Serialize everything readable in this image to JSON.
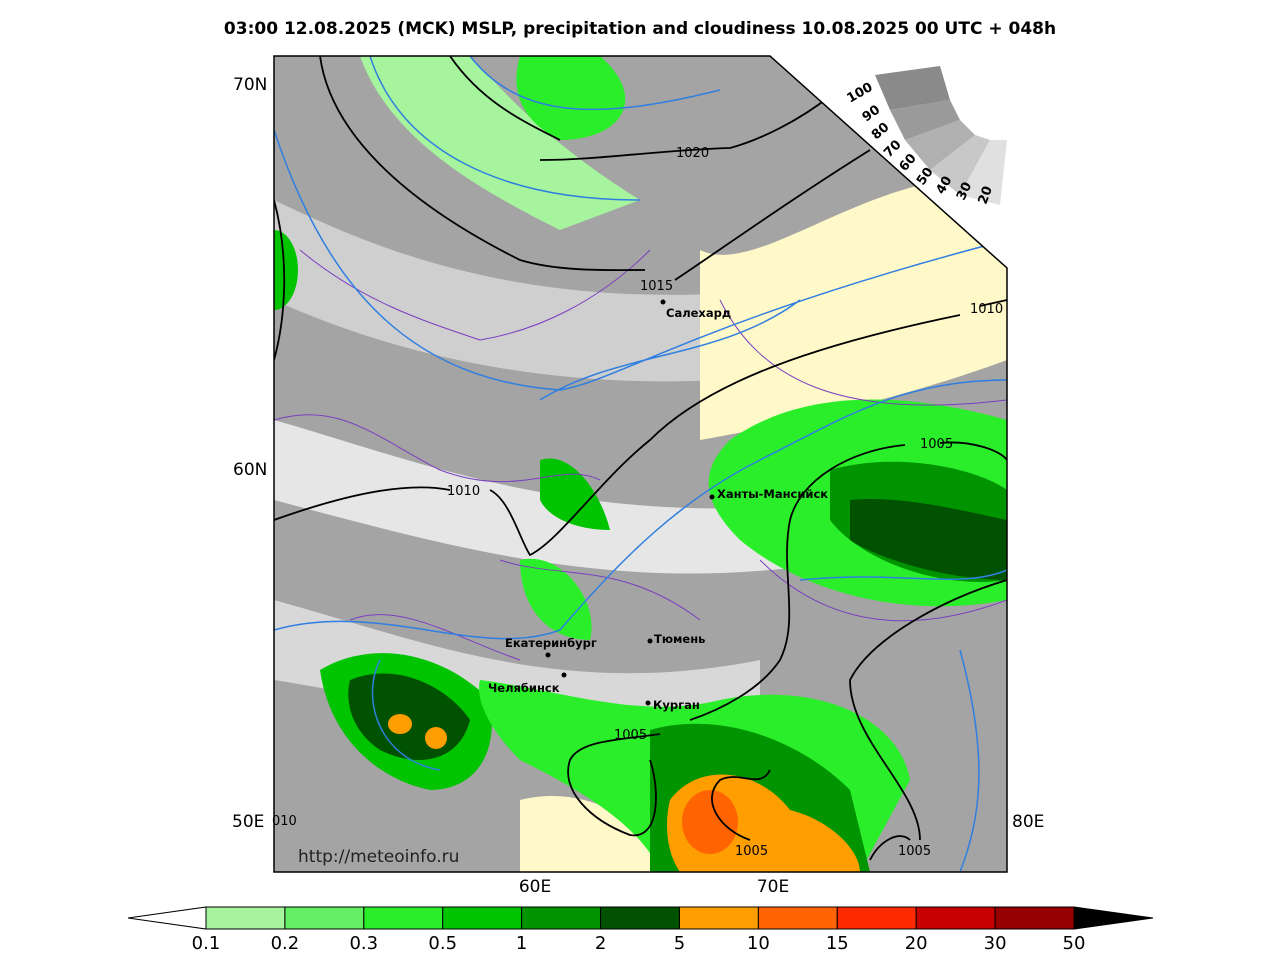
{
  "title": "03:00 12.08.2025 (MCK) MSLP, precipitation and cloudiness 10.08.2025 00 UTC + 048h",
  "axes": {
    "lat": [
      "70N",
      "60N"
    ],
    "lon_left": "50E",
    "lon_right": "80E",
    "lon_bottom": [
      "60E",
      "70E"
    ]
  },
  "isobar_labels": [
    "1020",
    "1015",
    "1010",
    "1005",
    "1010",
    "1005",
    "1005",
    "1005",
    "010"
  ],
  "cities": [
    "Салехард",
    "Ханты-Мансийск",
    "Тюмень",
    "Екатеринбург",
    "Челябинск",
    "Курган"
  ],
  "cloudiness_scale": [
    100,
    90,
    80,
    70,
    60,
    50,
    40,
    30,
    20
  ],
  "watermark": "http://meteoinfo.ru",
  "colorbar": {
    "labels": [
      0.1,
      0.2,
      0.3,
      0.5,
      1,
      2,
      5,
      10,
      15,
      20,
      30,
      50
    ],
    "colors": [
      "#a6f49e",
      "#64ef64",
      "#2aee2a",
      "#00c400",
      "#009400",
      "#005200",
      "#ff9e00",
      "#ff6400",
      "#ff2a00",
      "#c80000",
      "#960000"
    ]
  }
}
